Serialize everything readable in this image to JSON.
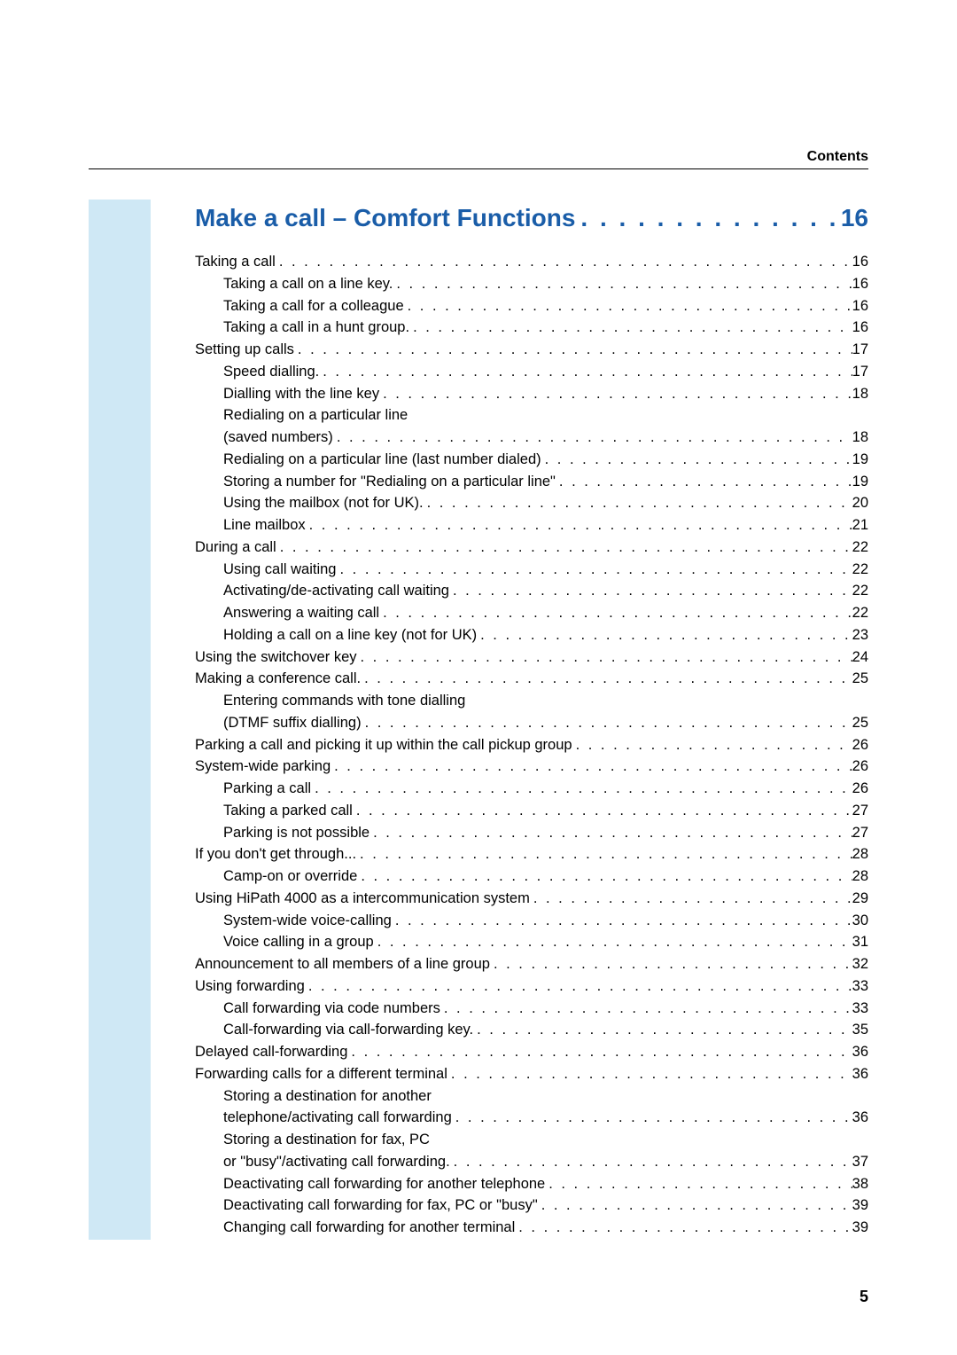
{
  "header": {
    "label": "Contents"
  },
  "footer": {
    "page": "5"
  },
  "section": {
    "title": "Make a call – Comfort Functions",
    "page": "16"
  },
  "entries": [
    {
      "indent": 0,
      "label": "Taking a call",
      "page": "16"
    },
    {
      "indent": 1,
      "label": "Taking a call on a line key.",
      "page": "16"
    },
    {
      "indent": 1,
      "label": "Taking a call for a colleague",
      "page": "16"
    },
    {
      "indent": 1,
      "label": "Taking a call in a hunt group.",
      "page": "16"
    },
    {
      "indent": 0,
      "label": "Setting up calls",
      "page": "17"
    },
    {
      "indent": 1,
      "label": "Speed dialling.",
      "page": "17"
    },
    {
      "indent": 1,
      "label": "Dialling with the line key",
      "page": "18"
    },
    {
      "indent": 1,
      "label": "Redialing on a particular line",
      "nopage": true
    },
    {
      "indent": 1,
      "label": "(saved numbers)",
      "page": "18"
    },
    {
      "indent": 1,
      "label": "Redialing on a particular line (last number dialed)",
      "page": "19"
    },
    {
      "indent": 1,
      "label": "Storing a number for \"Redialing on a particular line\"",
      "page": "19"
    },
    {
      "indent": 1,
      "label": "Using the mailbox (not for UK).",
      "page": "20"
    },
    {
      "indent": 1,
      "label": "Line mailbox",
      "page": "21"
    },
    {
      "indent": 0,
      "label": "During a call",
      "page": "22"
    },
    {
      "indent": 1,
      "label": "Using call waiting",
      "page": "22"
    },
    {
      "indent": 1,
      "label": "Activating/de-activating call waiting",
      "page": "22"
    },
    {
      "indent": 1,
      "label": "Answering a waiting call",
      "page": "22"
    },
    {
      "indent": 1,
      "label": "Holding a call on a line key (not for UK)",
      "page": "23"
    },
    {
      "indent": 0,
      "label": "Using the switchover key",
      "page": "24"
    },
    {
      "indent": 0,
      "label": "Making a conference call.",
      "page": "25"
    },
    {
      "indent": 1,
      "label": "Entering commands with tone dialling",
      "nopage": true
    },
    {
      "indent": 1,
      "label": "(DTMF suffix dialling)",
      "page": "25"
    },
    {
      "indent": 0,
      "label": "Parking a call and picking it up within the call pickup group",
      "page": "26"
    },
    {
      "indent": 0,
      "label": "System-wide parking",
      "page": "26"
    },
    {
      "indent": 1,
      "label": "Parking a call",
      "page": "26"
    },
    {
      "indent": 1,
      "label": "Taking a parked call",
      "page": "27"
    },
    {
      "indent": 1,
      "label": "Parking is not possible",
      "page": "27"
    },
    {
      "indent": 0,
      "label": "If you don't get through...",
      "page": "28"
    },
    {
      "indent": 1,
      "label": "Camp-on or override",
      "page": "28"
    },
    {
      "indent": 0,
      "label": "Using HiPath 4000 as a intercommunication system",
      "page": "29"
    },
    {
      "indent": 1,
      "label": "System-wide voice-calling",
      "page": "30"
    },
    {
      "indent": 1,
      "label": "Voice calling in a group",
      "page": "31"
    },
    {
      "indent": 0,
      "label": "Announcement to all members of a line group",
      "page": "32"
    },
    {
      "indent": 0,
      "label": "Using forwarding",
      "page": "33"
    },
    {
      "indent": 1,
      "label": "Call forwarding via code numbers",
      "page": "33"
    },
    {
      "indent": 1,
      "label": "Call-forwarding via call-forwarding key.",
      "page": "35"
    },
    {
      "indent": 0,
      "label": "Delayed call-forwarding",
      "page": "36"
    },
    {
      "indent": 0,
      "label": "Forwarding calls for a different terminal",
      "page": "36"
    },
    {
      "indent": 1,
      "label": "Storing a destination for another",
      "nopage": true
    },
    {
      "indent": 1,
      "label": "telephone/activating call forwarding",
      "page": "36"
    },
    {
      "indent": 1,
      "label": "Storing a destination for fax, PC",
      "nopage": true
    },
    {
      "indent": 1,
      "label": "or \"busy\"/activating call forwarding.",
      "page": "37"
    },
    {
      "indent": 1,
      "label": "Deactivating call forwarding for another telephone",
      "page": "38"
    },
    {
      "indent": 1,
      "label": "Deactivating call forwarding for fax, PC or \"busy\"",
      "page": "39"
    },
    {
      "indent": 1,
      "label": "Changing call forwarding for another terminal",
      "page": "39"
    }
  ]
}
